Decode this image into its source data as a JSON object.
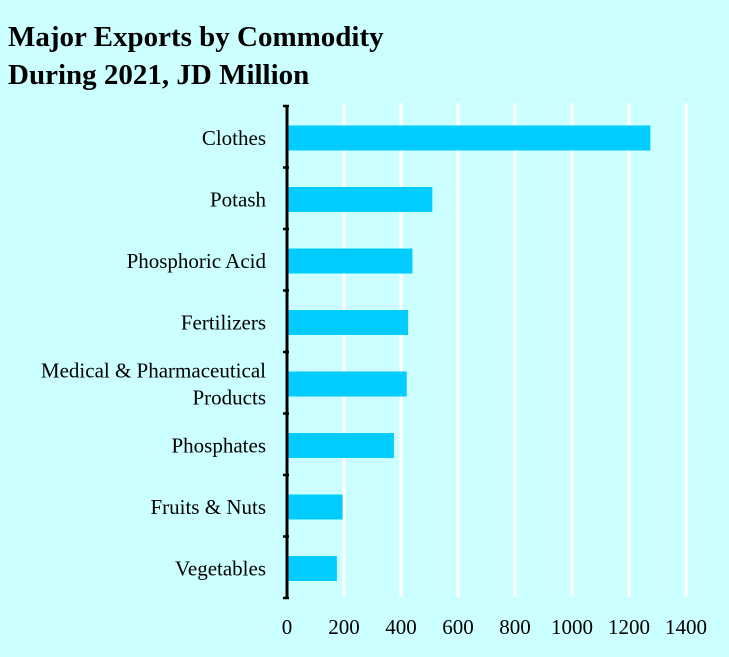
{
  "chart_data": {
    "type": "bar",
    "orientation": "horizontal",
    "title_lines": [
      "Major Exports by Commodity",
      "During 2021, JD Million"
    ],
    "categories": [
      "Clothes",
      "Potash",
      "Phosphoric Acid",
      "Fertilizers",
      "Medical & Pharmaceutical Products",
      "Phosphates",
      "Fruits & Nuts",
      "Vegetables"
    ],
    "values": [
      1275,
      510,
      440,
      425,
      420,
      375,
      195,
      175
    ],
    "xlim": [
      0,
      1400
    ],
    "xticks": [
      "0",
      "200",
      "400",
      "600",
      "800",
      "1000",
      "1200",
      "1400"
    ],
    "grid": "vertical",
    "legend": "none",
    "colors": {
      "bar": "#00ccff",
      "background": "#ccffff",
      "grid": "#ffffff",
      "axis": "#000000"
    }
  }
}
